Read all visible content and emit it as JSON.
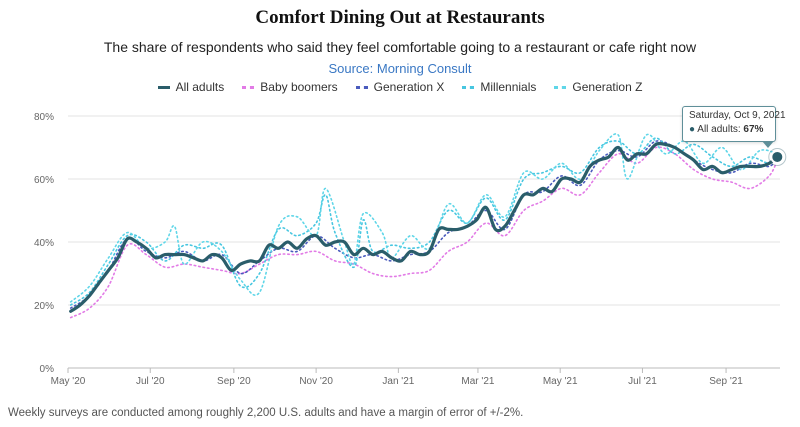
{
  "chart_data": {
    "type": "line",
    "title": "Comfort Dining Out at Restaurants",
    "subtitle": "The share of respondents who said they feel comfortable going to a restaurant or cafe right now",
    "source": "Source: Morning Consult",
    "footnote": "Weekly surveys are conducted among roughly 2,200 U.S. adults and have a margin of error of +/-2%.",
    "x_ticks": [
      "May '20",
      "Jul '20",
      "Sep '20",
      "Nov '20",
      "Jan '21",
      "Mar '21",
      "May '21",
      "Jul '21",
      "Sep '21"
    ],
    "y_ticks": [
      "0%",
      "20%",
      "40%",
      "60%",
      "80%"
    ],
    "ylim": [
      0,
      80
    ],
    "xlim": [
      "2020-05-01",
      "2021-10-11"
    ],
    "grid": true,
    "legend_position": "top-center",
    "series": [
      {
        "name": "All adults",
        "style": "solid",
        "color": "#2a5d6a",
        "points": [
          [
            "2020-05-03",
            18
          ],
          [
            "2020-05-10",
            20
          ],
          [
            "2020-05-17",
            23
          ],
          [
            "2020-05-24",
            27
          ],
          [
            "2020-05-31",
            31
          ],
          [
            "2020-06-07",
            35
          ],
          [
            "2020-06-14",
            41
          ],
          [
            "2020-06-21",
            40
          ],
          [
            "2020-06-28",
            38
          ],
          [
            "2020-07-05",
            35
          ],
          [
            "2020-07-12",
            36
          ],
          [
            "2020-07-19",
            36
          ],
          [
            "2020-07-26",
            36
          ],
          [
            "2020-08-02",
            35
          ],
          [
            "2020-08-09",
            34
          ],
          [
            "2020-08-16",
            36
          ],
          [
            "2020-08-23",
            35
          ],
          [
            "2020-08-30",
            31
          ],
          [
            "2020-09-06",
            33
          ],
          [
            "2020-09-13",
            34
          ],
          [
            "2020-09-20",
            34
          ],
          [
            "2020-09-27",
            39
          ],
          [
            "2020-10-04",
            38
          ],
          [
            "2020-10-11",
            40
          ],
          [
            "2020-10-18",
            38
          ],
          [
            "2020-10-25",
            41
          ],
          [
            "2020-11-01",
            42
          ],
          [
            "2020-11-08",
            39
          ],
          [
            "2020-11-15",
            40
          ],
          [
            "2020-11-22",
            40
          ],
          [
            "2020-11-29",
            36
          ],
          [
            "2020-12-06",
            38
          ],
          [
            "2020-12-13",
            36
          ],
          [
            "2020-12-20",
            37
          ],
          [
            "2020-12-27",
            35
          ],
          [
            "2021-01-03",
            34
          ],
          [
            "2021-01-10",
            37
          ],
          [
            "2021-01-17",
            36
          ],
          [
            "2021-01-24",
            37
          ],
          [
            "2021-01-31",
            44
          ],
          [
            "2021-02-07",
            44
          ],
          [
            "2021-02-14",
            44
          ],
          [
            "2021-02-21",
            45
          ],
          [
            "2021-02-28",
            47
          ],
          [
            "2021-03-07",
            51
          ],
          [
            "2021-03-14",
            44
          ],
          [
            "2021-03-21",
            45
          ],
          [
            "2021-03-28",
            50
          ],
          [
            "2021-04-04",
            55
          ],
          [
            "2021-04-11",
            55
          ],
          [
            "2021-04-18",
            57
          ],
          [
            "2021-04-25",
            56
          ],
          [
            "2021-05-02",
            60
          ],
          [
            "2021-05-09",
            60
          ],
          [
            "2021-05-16",
            59
          ],
          [
            "2021-05-23",
            64
          ],
          [
            "2021-05-30",
            66
          ],
          [
            "2021-06-06",
            67
          ],
          [
            "2021-06-13",
            70
          ],
          [
            "2021-06-20",
            66
          ],
          [
            "2021-06-27",
            68
          ],
          [
            "2021-07-04",
            68
          ],
          [
            "2021-07-11",
            71
          ],
          [
            "2021-07-18",
            71
          ],
          [
            "2021-07-25",
            70
          ],
          [
            "2021-08-01",
            68
          ],
          [
            "2021-08-08",
            66
          ],
          [
            "2021-08-15",
            63
          ],
          [
            "2021-08-22",
            64
          ],
          [
            "2021-08-29",
            62
          ],
          [
            "2021-09-05",
            63
          ],
          [
            "2021-09-12",
            64
          ],
          [
            "2021-09-19",
            64
          ],
          [
            "2021-09-26",
            64
          ],
          [
            "2021-10-03",
            65
          ],
          [
            "2021-10-09",
            67
          ]
        ]
      },
      {
        "name": "Baby boomers",
        "style": "dotted",
        "color": "#e27be6",
        "points": [
          [
            "2020-05-03",
            16
          ],
          [
            "2020-05-17",
            19
          ],
          [
            "2020-05-31",
            26
          ],
          [
            "2020-06-14",
            39
          ],
          [
            "2020-06-28",
            36
          ],
          [
            "2020-07-12",
            32
          ],
          [
            "2020-07-26",
            33
          ],
          [
            "2020-08-09",
            32
          ],
          [
            "2020-08-23",
            31
          ],
          [
            "2020-09-06",
            30
          ],
          [
            "2020-09-20",
            33
          ],
          [
            "2020-10-04",
            36
          ],
          [
            "2020-10-18",
            36
          ],
          [
            "2020-11-01",
            37
          ],
          [
            "2020-11-15",
            34
          ],
          [
            "2020-11-29",
            33
          ],
          [
            "2020-12-13",
            30
          ],
          [
            "2020-12-27",
            29
          ],
          [
            "2021-01-10",
            30
          ],
          [
            "2021-01-24",
            31
          ],
          [
            "2021-02-07",
            37
          ],
          [
            "2021-02-21",
            40
          ],
          [
            "2021-03-07",
            46
          ],
          [
            "2021-03-21",
            42
          ],
          [
            "2021-04-04",
            50
          ],
          [
            "2021-04-18",
            53
          ],
          [
            "2021-05-02",
            57
          ],
          [
            "2021-05-16",
            55
          ],
          [
            "2021-05-30",
            62
          ],
          [
            "2021-06-13",
            68
          ],
          [
            "2021-06-27",
            65
          ],
          [
            "2021-07-11",
            70
          ],
          [
            "2021-07-25",
            68
          ],
          [
            "2021-08-08",
            63
          ],
          [
            "2021-08-22",
            60
          ],
          [
            "2021-09-05",
            59
          ],
          [
            "2021-09-19",
            57
          ],
          [
            "2021-10-03",
            61
          ],
          [
            "2021-10-09",
            66
          ]
        ]
      },
      {
        "name": "Generation X",
        "style": "dotted",
        "color": "#4a5bbd",
        "points": [
          [
            "2020-05-03",
            19
          ],
          [
            "2020-05-17",
            23
          ],
          [
            "2020-05-31",
            31
          ],
          [
            "2020-06-14",
            41
          ],
          [
            "2020-06-28",
            37
          ],
          [
            "2020-07-12",
            35
          ],
          [
            "2020-07-26",
            37
          ],
          [
            "2020-08-09",
            34
          ],
          [
            "2020-08-23",
            36
          ],
          [
            "2020-09-06",
            30
          ],
          [
            "2020-09-20",
            34
          ],
          [
            "2020-10-04",
            38
          ],
          [
            "2020-10-18",
            37
          ],
          [
            "2020-11-01",
            42
          ],
          [
            "2020-11-15",
            38
          ],
          [
            "2020-11-29",
            35
          ],
          [
            "2020-12-13",
            36
          ],
          [
            "2020-12-27",
            34
          ],
          [
            "2021-01-10",
            36
          ],
          [
            "2021-01-24",
            37
          ],
          [
            "2021-02-07",
            43
          ],
          [
            "2021-02-21",
            45
          ],
          [
            "2021-03-07",
            50
          ],
          [
            "2021-03-21",
            44
          ],
          [
            "2021-04-04",
            55
          ],
          [
            "2021-04-18",
            56
          ],
          [
            "2021-05-02",
            61
          ],
          [
            "2021-05-16",
            58
          ],
          [
            "2021-05-30",
            66
          ],
          [
            "2021-06-13",
            69
          ],
          [
            "2021-06-27",
            67
          ],
          [
            "2021-07-11",
            72
          ],
          [
            "2021-07-25",
            70
          ],
          [
            "2021-08-08",
            66
          ],
          [
            "2021-08-22",
            63
          ],
          [
            "2021-09-05",
            62
          ],
          [
            "2021-09-19",
            65
          ],
          [
            "2021-10-03",
            64
          ],
          [
            "2021-10-09",
            67
          ]
        ]
      },
      {
        "name": "Millennials",
        "style": "dotted",
        "color": "#47c6e0",
        "points": [
          [
            "2020-05-03",
            20
          ],
          [
            "2020-05-17",
            24
          ],
          [
            "2020-05-31",
            33
          ],
          [
            "2020-06-14",
            42
          ],
          [
            "2020-06-28",
            40
          ],
          [
            "2020-07-12",
            34
          ],
          [
            "2020-07-26",
            39
          ],
          [
            "2020-08-09",
            38
          ],
          [
            "2020-08-23",
            39
          ],
          [
            "2020-09-06",
            26
          ],
          [
            "2020-09-20",
            30
          ],
          [
            "2020-10-04",
            44
          ],
          [
            "2020-10-18",
            42
          ],
          [
            "2020-11-01",
            46
          ],
          [
            "2020-11-08",
            55
          ],
          [
            "2020-11-15",
            43
          ],
          [
            "2020-11-29",
            32
          ],
          [
            "2020-12-06",
            47
          ],
          [
            "2020-12-13",
            37
          ],
          [
            "2020-12-27",
            39
          ],
          [
            "2021-01-10",
            38
          ],
          [
            "2021-01-24",
            40
          ],
          [
            "2021-02-07",
            50
          ],
          [
            "2021-02-21",
            46
          ],
          [
            "2021-03-07",
            54
          ],
          [
            "2021-03-21",
            47
          ],
          [
            "2021-04-04",
            60
          ],
          [
            "2021-04-18",
            62
          ],
          [
            "2021-05-02",
            64
          ],
          [
            "2021-05-16",
            62
          ],
          [
            "2021-05-30",
            70
          ],
          [
            "2021-06-13",
            72
          ],
          [
            "2021-06-27",
            68
          ],
          [
            "2021-07-11",
            73
          ],
          [
            "2021-07-25",
            68
          ],
          [
            "2021-08-08",
            71
          ],
          [
            "2021-08-22",
            67
          ],
          [
            "2021-09-05",
            64
          ],
          [
            "2021-09-19",
            67
          ],
          [
            "2021-10-03",
            65
          ],
          [
            "2021-10-09",
            68
          ]
        ]
      },
      {
        "name": "Generation Z",
        "style": "dotted",
        "color": "#5fd6e8",
        "points": [
          [
            "2020-05-03",
            21
          ],
          [
            "2020-05-17",
            26
          ],
          [
            "2020-05-31",
            35
          ],
          [
            "2020-06-14",
            43
          ],
          [
            "2020-06-28",
            38
          ],
          [
            "2020-07-12",
            40
          ],
          [
            "2020-07-19",
            45
          ],
          [
            "2020-07-26",
            33
          ],
          [
            "2020-08-09",
            40
          ],
          [
            "2020-08-23",
            37
          ],
          [
            "2020-09-06",
            28
          ],
          [
            "2020-09-20",
            24
          ],
          [
            "2020-10-04",
            45
          ],
          [
            "2020-10-18",
            48
          ],
          [
            "2020-11-01",
            42
          ],
          [
            "2020-11-08",
            57
          ],
          [
            "2020-11-22",
            40
          ],
          [
            "2020-11-29",
            33
          ],
          [
            "2020-12-06",
            49
          ],
          [
            "2020-12-20",
            43
          ],
          [
            "2020-12-27",
            35
          ],
          [
            "2021-01-10",
            42
          ],
          [
            "2021-01-24",
            38
          ],
          [
            "2021-02-07",
            52
          ],
          [
            "2021-02-21",
            46
          ],
          [
            "2021-03-07",
            55
          ],
          [
            "2021-03-21",
            48
          ],
          [
            "2021-04-04",
            62
          ],
          [
            "2021-04-18",
            60
          ],
          [
            "2021-05-02",
            65
          ],
          [
            "2021-05-16",
            60
          ],
          [
            "2021-05-30",
            69
          ],
          [
            "2021-06-13",
            74
          ],
          [
            "2021-06-20",
            60
          ],
          [
            "2021-07-04",
            74
          ],
          [
            "2021-07-18",
            68
          ],
          [
            "2021-08-01",
            72
          ],
          [
            "2021-08-15",
            65
          ],
          [
            "2021-08-29",
            70
          ],
          [
            "2021-09-12",
            63
          ],
          [
            "2021-09-26",
            69
          ],
          [
            "2021-10-09",
            68
          ]
        ]
      }
    ],
    "tooltip": {
      "date": "Saturday, Oct 9, 2021",
      "series": "All adults",
      "label": "All adults:",
      "value": "67%",
      "x": "2021-10-09",
      "y": 67
    }
  }
}
